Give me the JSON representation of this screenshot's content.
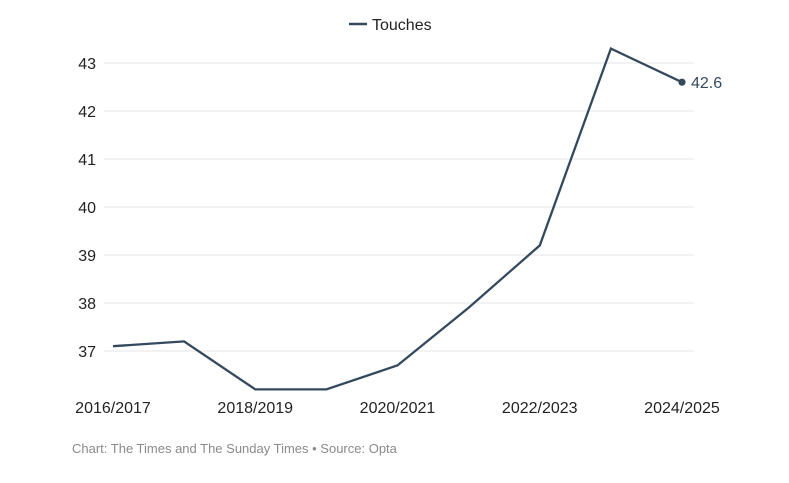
{
  "chart_data": {
    "type": "line",
    "categories": [
      "2016/2017",
      "2017/2018",
      "2018/2019",
      "2019/2020",
      "2020/2021",
      "2021/2022",
      "2022/2023",
      "2023/2024",
      "2024/2025"
    ],
    "x_tick_labels": [
      "2016/2017",
      "2018/2019",
      "2020/2021",
      "2022/2023",
      "2024/2025"
    ],
    "series": [
      {
        "name": "Touches",
        "values": [
          37.1,
          37.2,
          36.2,
          36.2,
          36.7,
          37.9,
          39.2,
          43.3,
          42.6
        ],
        "color": "#34495e"
      }
    ],
    "y_ticks": [
      37,
      38,
      39,
      40,
      41,
      42,
      43
    ],
    "ylim": [
      36.2,
      43.3
    ],
    "grid": true,
    "legend_position": "top-center",
    "end_label": "42.6",
    "title": "",
    "xlabel": "",
    "ylabel": ""
  },
  "footer": {
    "source": "Chart: The Times and The Sunday Times • Source: Opta"
  }
}
